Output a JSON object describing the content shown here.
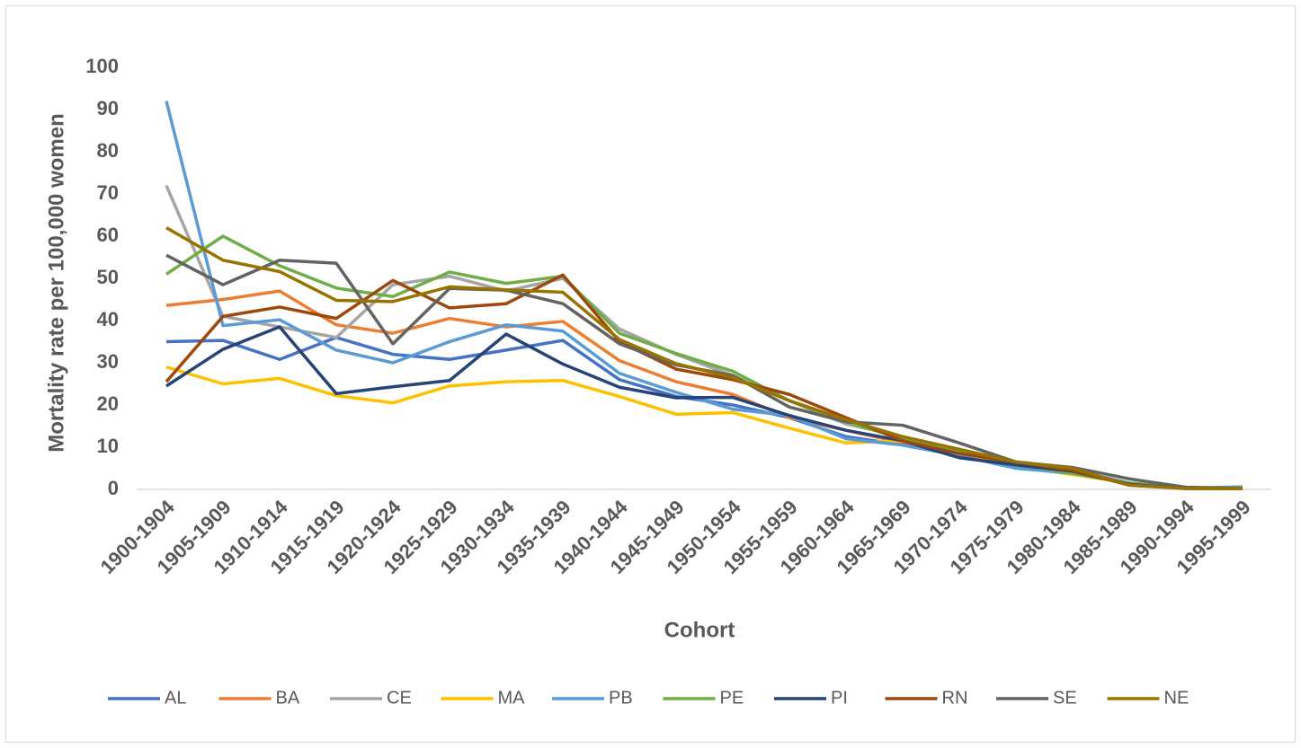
{
  "chart_data": {
    "type": "line",
    "y_label": "Mortality rate per 100,000 women",
    "x_label": "Cohort",
    "categories": [
      "1900-1904",
      "1905-1909",
      "1910-1914",
      "1915-1919",
      "1920-1924",
      "1925-1929",
      "1930-1934",
      "1935-1939",
      "1940-1944",
      "1945-1949",
      "1950-1954",
      "1955-1959",
      "1960-1964",
      "1965-1969",
      "1970-1974",
      "1975-1979",
      "1980-1984",
      "1985-1989",
      "1990-1994",
      "1995-1999"
    ],
    "ylim": [
      0,
      100
    ],
    "yticks": [
      0,
      10,
      20,
      30,
      40,
      50,
      60,
      70,
      80,
      90,
      100
    ],
    "grid": false,
    "legend": "bottom",
    "series": [
      {
        "name": "AL",
        "color": "#4472c4",
        "values": [
          35,
          35.3,
          30.8,
          36,
          32,
          30.8,
          33,
          35.3,
          26,
          22,
          20,
          17,
          12.5,
          10.5,
          8,
          5.5,
          4.5,
          1.5,
          0.3,
          0.2
        ]
      },
      {
        "name": "BA",
        "color": "#ed7d31",
        "values": [
          43.6,
          45,
          47,
          39,
          37,
          40.5,
          38.5,
          39.8,
          30.5,
          25.5,
          22.5,
          17,
          14,
          11,
          8.5,
          5.5,
          4,
          1.5,
          0.5,
          0.2
        ]
      },
      {
        "name": "CE",
        "color": "#a5a5a5",
        "values": [
          72,
          41,
          38.5,
          36,
          48.5,
          50.5,
          47,
          50,
          38,
          32,
          27,
          21,
          15.5,
          12.5,
          9,
          6,
          4,
          1.5,
          0.3,
          0.2
        ]
      },
      {
        "name": "MA",
        "color": "#ffc000",
        "values": [
          29,
          25,
          26.3,
          22.2,
          20.5,
          24.5,
          25.5,
          25.8,
          22,
          17.8,
          18.2,
          14.5,
          11,
          11.5,
          8,
          5.5,
          3.5,
          1.5,
          0.3,
          0.2
        ]
      },
      {
        "name": "PB",
        "color": "#5b9bd5",
        "values": [
          92,
          38.8,
          40.2,
          33,
          30,
          35,
          39,
          37.5,
          27.5,
          23,
          19,
          17.5,
          12,
          10.5,
          8,
          5,
          3.8,
          1.5,
          0.3,
          0.6
        ]
      },
      {
        "name": "PE",
        "color": "#70ad47",
        "values": [
          51,
          60,
          53,
          47.7,
          45.7,
          51.5,
          48.8,
          50.5,
          37,
          32.2,
          28,
          21,
          16,
          12,
          9,
          6,
          3.8,
          1.5,
          0.3,
          0.2
        ]
      },
      {
        "name": "PI",
        "color": "#264478",
        "values": [
          24.5,
          33.2,
          38.5,
          22.7,
          24.3,
          25.8,
          36.8,
          29.7,
          24.2,
          21.7,
          21.8,
          17.5,
          14,
          11.5,
          7.5,
          5.8,
          4.3,
          1.2,
          0.2,
          0.2
        ]
      },
      {
        "name": "RN",
        "color": "#9e480e",
        "values": [
          25.5,
          41,
          43.2,
          40.5,
          49.5,
          43,
          44,
          50.8,
          35,
          28.5,
          26,
          22.5,
          17,
          11.5,
          8.5,
          6.5,
          4.5,
          1,
          0.2,
          0.2
        ]
      },
      {
        "name": "SE",
        "color": "#636363",
        "values": [
          55.5,
          48.5,
          54.3,
          53.6,
          34.5,
          47.6,
          47.2,
          44,
          34.5,
          29.5,
          27,
          19.5,
          16,
          15.2,
          11,
          6.5,
          5.2,
          2.5,
          0.5,
          0.2
        ]
      },
      {
        "name": "NE",
        "color": "#997300",
        "values": [
          62,
          54.3,
          51.6,
          44.8,
          44.5,
          48,
          47.3,
          46.7,
          35.5,
          29.8,
          26.5,
          21,
          16.5,
          12.5,
          9.5,
          6.5,
          5,
          1,
          0.2,
          0.2
        ]
      }
    ]
  }
}
